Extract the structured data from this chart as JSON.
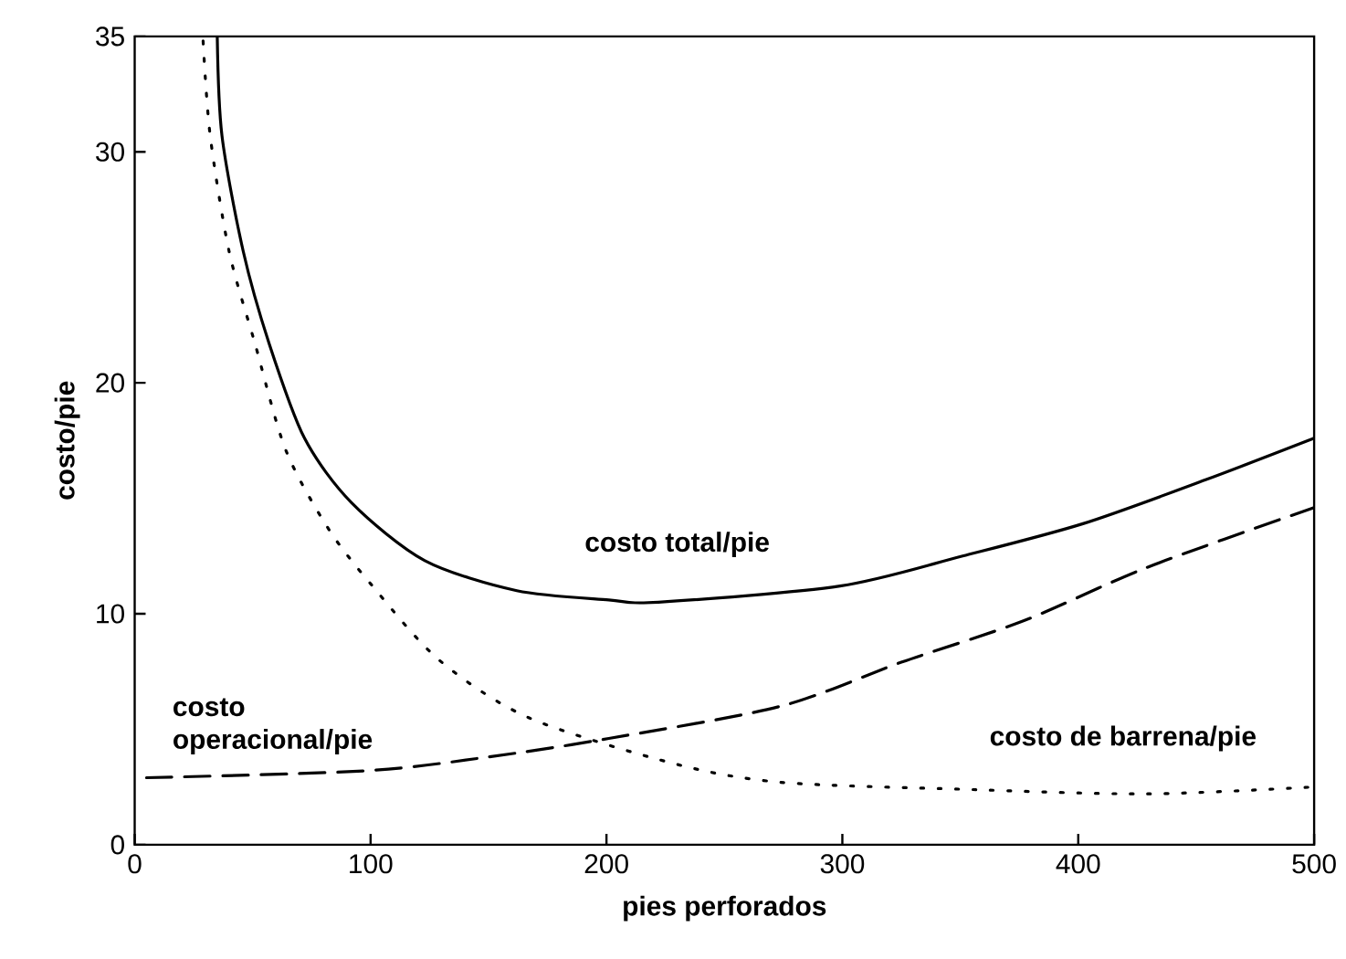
{
  "chart_data": {
    "type": "line",
    "xlabel": "pies perforados",
    "ylabel": "costo/pie",
    "xlim": [
      0,
      500
    ],
    "ylim": [
      0,
      35
    ],
    "xticks": [
      0,
      100,
      200,
      300,
      400,
      500
    ],
    "yticks": [
      0,
      10,
      20,
      30,
      35
    ],
    "grid": false,
    "legend": false,
    "marker": "none",
    "series": [
      {
        "name": "costo total/pie",
        "color": "#000000",
        "line_style": "solid",
        "x": [
          35,
          37,
          46,
          57,
          72,
          92,
          123,
          162,
          201,
          222,
          299,
          351,
          402,
          454,
          500
        ],
        "values": [
          35,
          30.7,
          25.7,
          21.7,
          17.6,
          14.8,
          12.3,
          11.0,
          10.6,
          10.5,
          11.2,
          12.5,
          13.9,
          15.8,
          17.6
        ]
      },
      {
        "name": "costo operacional/pie",
        "color": "#000000",
        "line_style": "dashed",
        "x": [
          5,
          98,
          150,
          201,
          274,
          325,
          377,
          429,
          500
        ],
        "values": [
          2.9,
          3.2,
          3.8,
          4.6,
          6.0,
          7.9,
          9.7,
          12.0,
          14.6
        ]
      },
      {
        "name": "costo de barrena/pie",
        "color": "#000000",
        "line_style": "dotted",
        "x": [
          29,
          32,
          40,
          51,
          64,
          82,
          100,
          129,
          167,
          229,
          274,
          351,
          429,
          500
        ],
        "values": [
          34.8,
          30.7,
          25.7,
          21.7,
          17.1,
          13.7,
          11.3,
          8.0,
          5.5,
          3.5,
          2.7,
          2.4,
          2.2,
          2.5
        ]
      }
    ]
  }
}
